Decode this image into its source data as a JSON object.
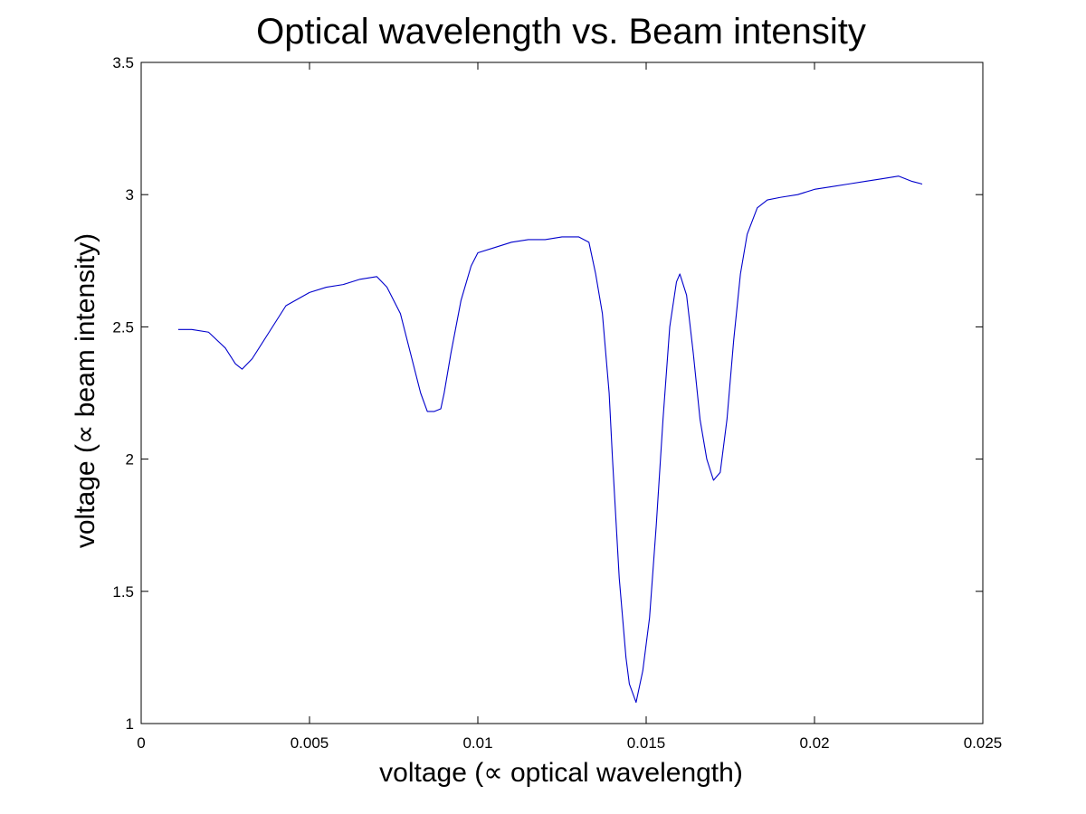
{
  "chart_data": {
    "type": "line",
    "title": "Optical wavelength vs. Beam intensity",
    "xlabel": "voltage (∝ optical wavelength)",
    "ylabel": "voltage (∝ beam intensity)",
    "xlim": [
      0,
      0.025
    ],
    "ylim": [
      1,
      3.5
    ],
    "xticks": [
      0,
      0.005,
      0.01,
      0.015,
      0.02,
      0.025
    ],
    "xtick_labels": [
      "0",
      "0.005",
      "0.01",
      "0.015",
      "0.02",
      "0.025"
    ],
    "yticks": [
      1,
      1.5,
      2,
      2.5,
      3,
      3.5
    ],
    "ytick_labels": [
      "1",
      "1.5",
      "2",
      "2.5",
      "3",
      "3.5"
    ],
    "grid": false,
    "color": "#0000cc",
    "series": [
      {
        "x": [
          0.0011,
          0.0015,
          0.002,
          0.0025,
          0.0028,
          0.003,
          0.0033,
          0.0038,
          0.0043,
          0.005,
          0.0055,
          0.006,
          0.0065,
          0.007,
          0.0073,
          0.0077,
          0.008,
          0.0083,
          0.0085,
          0.0087,
          0.0089,
          0.009,
          0.0092,
          0.0095,
          0.0098,
          0.01,
          0.0105,
          0.011,
          0.0115,
          0.012,
          0.0125,
          0.013,
          0.0133,
          0.0135,
          0.0137,
          0.0139,
          0.014,
          0.0142,
          0.0144,
          0.0145,
          0.0147,
          0.0149,
          0.0151,
          0.0153,
          0.0155,
          0.0157,
          0.0159,
          0.016,
          0.0162,
          0.0164,
          0.0166,
          0.0168,
          0.017,
          0.0172,
          0.0174,
          0.0176,
          0.0178,
          0.018,
          0.0183,
          0.0186,
          0.019,
          0.0195,
          0.02,
          0.0205,
          0.021,
          0.0215,
          0.022,
          0.0225,
          0.0229,
          0.0232
        ],
        "y": [
          2.49,
          2.49,
          2.48,
          2.42,
          2.36,
          2.34,
          2.38,
          2.48,
          2.58,
          2.63,
          2.65,
          2.66,
          2.68,
          2.69,
          2.65,
          2.55,
          2.4,
          2.25,
          2.18,
          2.18,
          2.19,
          2.25,
          2.4,
          2.6,
          2.73,
          2.78,
          2.8,
          2.82,
          2.83,
          2.83,
          2.84,
          2.84,
          2.82,
          2.7,
          2.55,
          2.25,
          2.0,
          1.55,
          1.25,
          1.15,
          1.08,
          1.2,
          1.4,
          1.75,
          2.15,
          2.5,
          2.67,
          2.7,
          2.62,
          2.4,
          2.15,
          2.0,
          1.92,
          1.95,
          2.15,
          2.45,
          2.7,
          2.85,
          2.95,
          2.98,
          2.99,
          3.0,
          3.02,
          3.03,
          3.04,
          3.05,
          3.06,
          3.07,
          3.05,
          3.04
        ]
      }
    ]
  }
}
